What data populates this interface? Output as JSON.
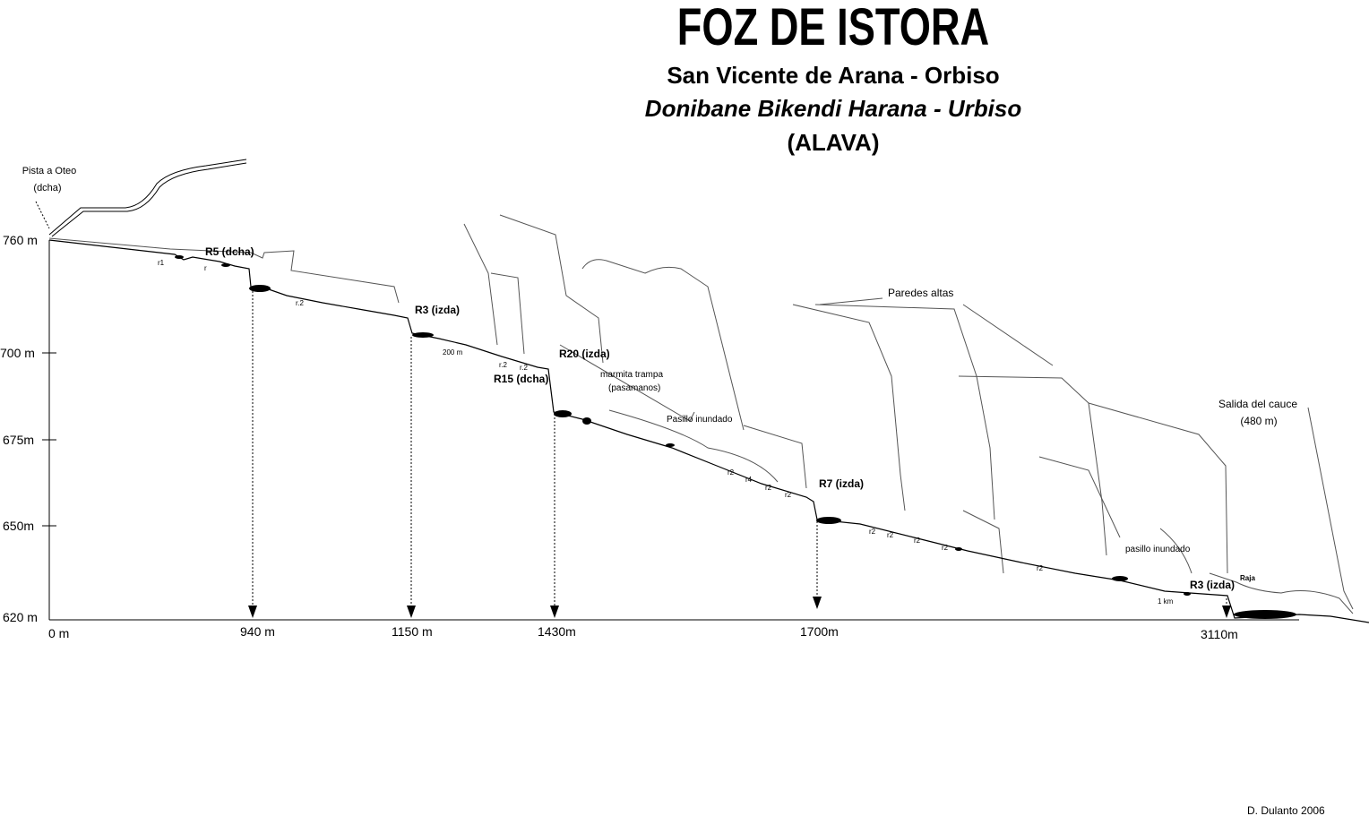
{
  "header": {
    "title": "FOZ DE ISTORA",
    "subtitle": "San Vicente de Arana - Orbiso",
    "subtitle_basque": "Donibane Bikendi Harana - Urbiso",
    "province": "(ALAVA)"
  },
  "altitudes": [
    "760 m",
    "700 m",
    "675m",
    "650m",
    "620 m"
  ],
  "distances": [
    "0 m",
    "940 m",
    "1150 m",
    "1430m",
    "1700m",
    "3110m"
  ],
  "labels": [
    "Pista a Oteo",
    "(dcha)",
    "R5 (dcha)",
    "r1",
    "r",
    "r.2",
    "R3 (izda)",
    "200 m",
    "r.2",
    "r.2",
    "R20 (izda)",
    "R15 (dcha)",
    "marmita trampa",
    "(pasamanos)",
    "Pasillo inundado",
    "r2",
    "r4",
    "r2",
    "r2",
    "R7 (izda)",
    "Paredes altas",
    "r2",
    "r2",
    "r2",
    "r2",
    "r2",
    "pasillo inundado",
    "1 km",
    "R3 (izda)",
    "Raja",
    "Salida del cauce",
    "(480 m)"
  ],
  "credit": "D. Dulanto 2006"
}
